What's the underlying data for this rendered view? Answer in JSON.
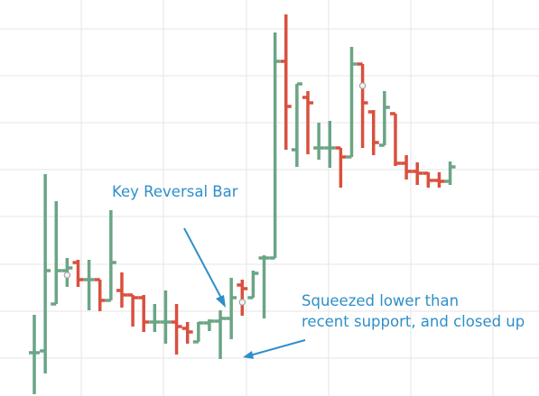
{
  "chart_data": {
    "type": "ohlc",
    "title": "",
    "xlabel": "",
    "ylabel": "",
    "grid": true,
    "colors": {
      "up": "#6aa585",
      "down": "#d9503f",
      "annotation": "#2e8fc9",
      "marker": "#999999"
    },
    "bars": [
      {
        "o": 391,
        "h": 349,
        "l": 437,
        "c": 391
      },
      {
        "o": 389,
        "h": 193,
        "l": 414,
        "c": 300
      },
      {
        "o": 337,
        "h": 223,
        "l": 337,
        "c": 300
      },
      {
        "o": 300,
        "h": 286,
        "l": 318,
        "c": 297
      },
      {
        "o": 291,
        "h": 288,
        "l": 318,
        "c": 310
      },
      {
        "o": 310,
        "h": 288,
        "l": 344,
        "c": 310
      },
      {
        "o": 310,
        "h": 310,
        "l": 345,
        "c": 333
      },
      {
        "o": 333,
        "h": 233,
        "l": 333,
        "c": 291
      },
      {
        "o": 322,
        "h": 302,
        "l": 341,
        "c": 327
      },
      {
        "o": 327,
        "h": 327,
        "l": 362,
        "c": 330
      },
      {
        "o": 330,
        "h": 327,
        "l": 368,
        "c": 357
      },
      {
        "o": 357,
        "h": 337,
        "l": 368,
        "c": 357
      },
      {
        "o": 357,
        "h": 322,
        "l": 381,
        "c": 357
      },
      {
        "o": 357,
        "h": 337,
        "l": 393,
        "c": 362
      },
      {
        "o": 364,
        "h": 357,
        "l": 381,
        "c": 368
      },
      {
        "o": 379,
        "h": 357,
        "l": 379,
        "c": 358
      },
      {
        "o": 358,
        "h": 354,
        "l": 367,
        "c": 356
      },
      {
        "o": 356,
        "h": 344,
        "l": 398,
        "c": 353
      },
      {
        "o": 353,
        "h": 308,
        "l": 376,
        "c": 330
      },
      {
        "o": 316,
        "h": 310,
        "l": 350,
        "c": 320
      },
      {
        "o": 330,
        "h": 300,
        "l": 330,
        "c": 303
      },
      {
        "o": 286,
        "h": 283,
        "l": 353,
        "c": 286
      },
      {
        "o": 286,
        "h": 36,
        "l": 286,
        "c": 68
      },
      {
        "o": 68,
        "h": 16,
        "l": 166,
        "c": 118
      },
      {
        "o": 166,
        "h": 93,
        "l": 185,
        "c": 93
      },
      {
        "o": 108,
        "h": 101,
        "l": 171,
        "c": 114
      },
      {
        "o": 164,
        "h": 136,
        "l": 177,
        "c": 164
      },
      {
        "o": 164,
        "h": 134,
        "l": 186,
        "c": 164
      },
      {
        "o": 164,
        "h": 164,
        "l": 208,
        "c": 174
      },
      {
        "o": 174,
        "h": 52,
        "l": 174,
        "c": 71
      },
      {
        "o": 71,
        "h": 71,
        "l": 164,
        "c": 114
      },
      {
        "o": 124,
        "h": 122,
        "l": 172,
        "c": 158
      },
      {
        "o": 161,
        "h": 101,
        "l": 161,
        "c": 119
      },
      {
        "o": 126,
        "h": 126,
        "l": 184,
        "c": 181
      },
      {
        "o": 181,
        "h": 172,
        "l": 199,
        "c": 190
      },
      {
        "o": 190,
        "h": 180,
        "l": 205,
        "c": 192
      },
      {
        "o": 192,
        "h": 191,
        "l": 208,
        "c": 200
      },
      {
        "o": 200,
        "h": 191,
        "l": 208,
        "c": 201
      },
      {
        "o": 201,
        "h": 179,
        "l": 205,
        "c": 185
      }
    ],
    "markers": [
      {
        "bar": 3,
        "y": 305
      },
      {
        "bar": 19,
        "y": 335
      },
      {
        "bar": 30,
        "y": 95
      }
    ],
    "annotations": [
      {
        "text": "Key Reversal Bar"
      },
      {
        "text": "Squeezed lower than"
      },
      {
        "text": "recent support, and closed up"
      }
    ]
  }
}
